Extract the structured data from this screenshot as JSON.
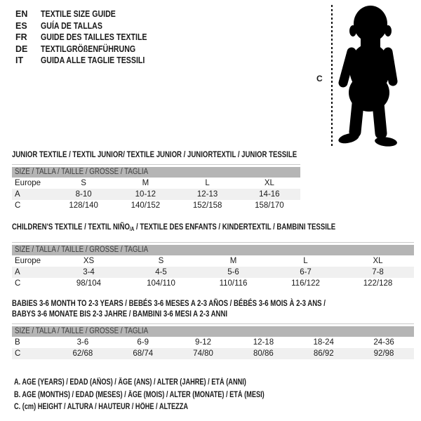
{
  "colors": {
    "header_bar": "#b5b5b5",
    "header_bar_text": "#3c3c3c",
    "shaded_row": "#f0f0f0",
    "rule": "#c9c9c9",
    "text": "#1a1a1a",
    "silhouette": "#000000"
  },
  "header": {
    "languages": [
      {
        "code": "EN",
        "title": "TEXTILE SIZE GUIDE"
      },
      {
        "code": "ES",
        "title": "GUÍA DE TALLAS"
      },
      {
        "code": "FR",
        "title": "GUIDE DES TAILLES TEXTILE"
      },
      {
        "code": "DE",
        "title": "TEXTILGRÖßENFÜHRUNG"
      },
      {
        "code": "IT",
        "title": "GUIDA ALLE TAGLIE TESSILI"
      }
    ]
  },
  "figure": {
    "measure_label": "C"
  },
  "tables": [
    {
      "title_lines": [
        [
          {
            "text": "JUNIOR TEXTILE / TEXTIL JUNIOR/ TEXTILE JUNIOR / JUNIORTEXTIL / JUNIOR TESSILE"
          }
        ]
      ],
      "size_header": "SIZE / TALLA / TAILLE / GRÖSSE / TAGLIA",
      "rows": [
        {
          "label": "Europe",
          "values": [
            "S",
            "M",
            "L",
            "XL"
          ],
          "shaded": false
        },
        {
          "label": "A",
          "values": [
            "8-10",
            "10-12",
            "12-13",
            "14-16"
          ],
          "shaded": true
        },
        {
          "label": "C",
          "values": [
            "128/140",
            "140/152",
            "152/158",
            "158/170"
          ],
          "shaded": false
        }
      ]
    },
    {
      "title_lines": [
        [
          {
            "text": "CHILDREN'S TEXTILE / TEXTIL NIÑO"
          },
          {
            "text": "/A",
            "sub": true
          },
          {
            "text": " / TEXTILE DES ENFANTS / KINDERTEXTIL / BAMBINI TESSILE"
          }
        ]
      ],
      "size_header": "SIZE / TALLA / TAILLE / GRÖSSE / TAGLIA",
      "rows": [
        {
          "label": "Europe",
          "values": [
            "XS",
            "S",
            "M",
            "L",
            "XL"
          ],
          "shaded": false
        },
        {
          "label": "A",
          "values": [
            "3-4",
            "4-5",
            "5-6",
            "6-7",
            "7-8"
          ],
          "shaded": true
        },
        {
          "label": "C",
          "values": [
            "98/104",
            "104/110",
            "110/116",
            "116/122",
            "122/128"
          ],
          "shaded": false
        }
      ]
    },
    {
      "title_lines": [
        [
          {
            "text": "BABIES 3-6 MONTH TO 2-3 YEARS / BEBÉS 3-6 MESES A 2-3 AÑOS / BÉBÉS 3-6 MOIS À 2-3 ANS /"
          }
        ],
        [
          {
            "text": "BABYS 3-6 MONATE BIS 2-3 JAHRE / BAMBINI 3-6 MESI A 2-3 ANNI"
          }
        ]
      ],
      "size_header": "SIZE / TALLA / TAILLE / GRÖSSE / TAGLIA",
      "rows": [
        {
          "label": "B",
          "values": [
            "3-6",
            "6-9",
            "9-12",
            "12-18",
            "18-24",
            "24-36"
          ],
          "shaded": false
        },
        {
          "label": "C",
          "values": [
            "62/68",
            "68/74",
            "74/80",
            "80/86",
            "86/92",
            "92/98"
          ],
          "shaded": true
        }
      ]
    }
  ],
  "footnotes": [
    "A. AGE (YEARS) / EDAD (AÑOS) / ÂGE (ANS) / ALTER (JAHRE) / ETÀ (ANNI)",
    "B. AGE (MONTHS) / EDAD (MESES) / ÂGE (MOIS) / ALTER (MONATE) / ETÀ (MESI)",
    "C. (cm) HEIGHT / ALTURA / HAUTEUR / HÖHE / ALTEZZA"
  ]
}
